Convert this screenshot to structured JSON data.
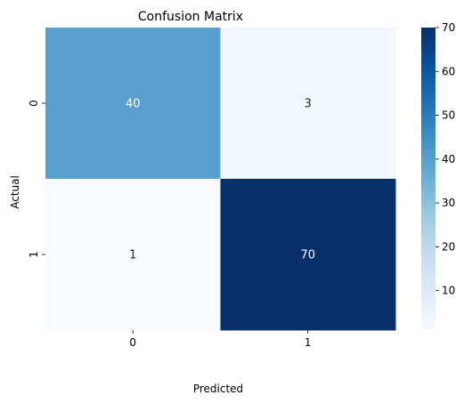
{
  "chart_data": {
    "type": "heatmap",
    "title": "Confusion Matrix",
    "xlabel": "Predicted",
    "ylabel": "Actual",
    "x_categories": [
      "0",
      "1"
    ],
    "y_categories": [
      "0",
      "1"
    ],
    "values": [
      [
        40,
        3
      ],
      [
        1,
        70
      ]
    ],
    "annotations": [
      [
        "40",
        "3"
      ],
      [
        "1",
        "70"
      ]
    ],
    "colormap": "Blues",
    "colorbar": {
      "range": [
        1,
        70
      ],
      "ticks": [
        10,
        20,
        30,
        40,
        50,
        60,
        70
      ],
      "tick_labels": [
        "10",
        "20",
        "30",
        "40",
        "50",
        "60",
        "70"
      ]
    },
    "grid": false
  }
}
